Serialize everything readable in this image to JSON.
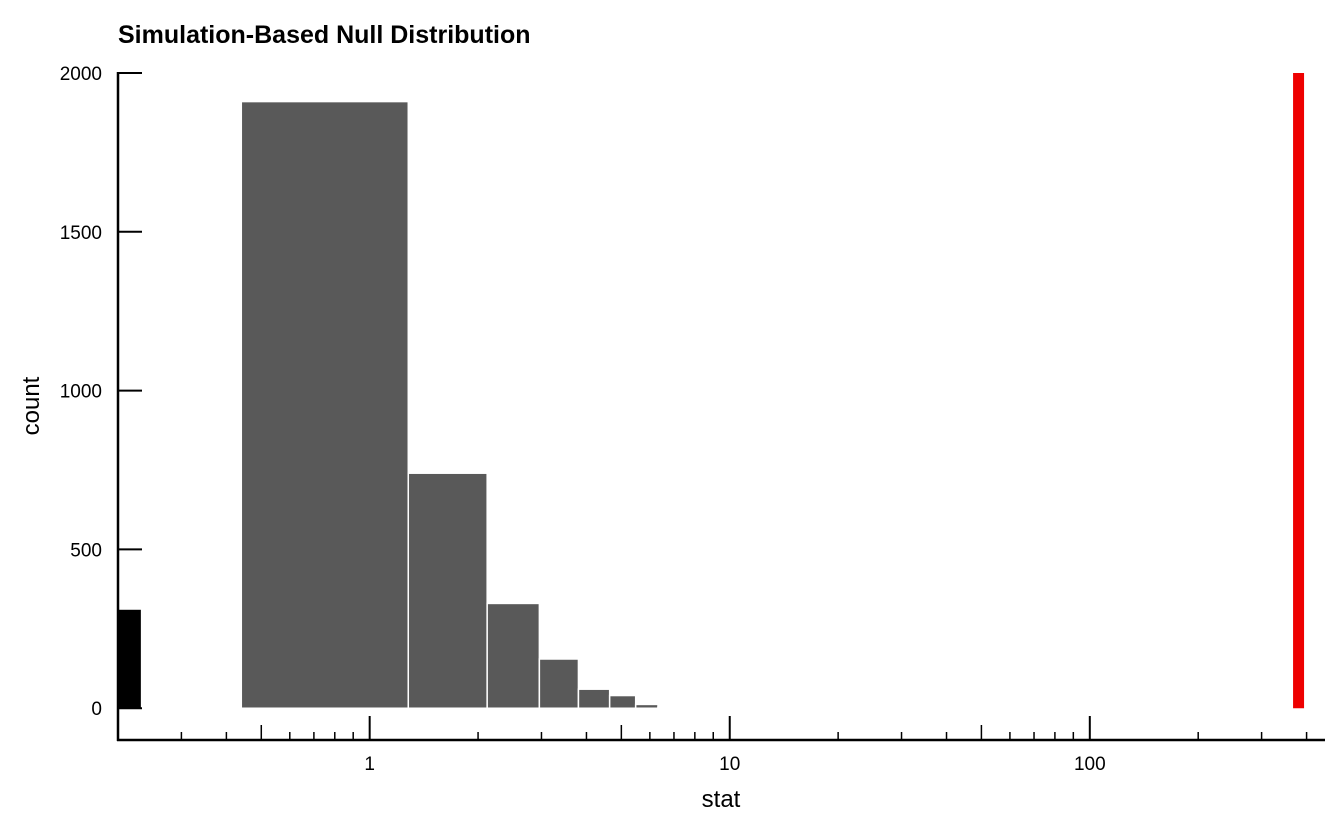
{
  "chart_data": {
    "type": "bar",
    "title": "Simulation-Based Null Distribution",
    "xlabel": "stat",
    "ylabel": "count",
    "x_scale": "log10",
    "xlim": [
      0.2,
      450
    ],
    "ylim": [
      -100,
      2000
    ],
    "grid": false,
    "legend": "none",
    "x_ticks": [
      1,
      10,
      100
    ],
    "y_ticks": [
      0,
      500,
      1000,
      1500,
      2000
    ],
    "bins": [
      {
        "x0": 0.44,
        "x1": 1.28,
        "count": 1910
      },
      {
        "x0": 1.28,
        "x1": 2.12,
        "count": 740
      },
      {
        "x0": 2.12,
        "x1": 2.96,
        "count": 330
      },
      {
        "x0": 2.96,
        "x1": 3.8,
        "count": 155
      },
      {
        "x0": 3.8,
        "x1": 4.64,
        "count": 60
      },
      {
        "x0": 4.64,
        "x1": 5.48,
        "count": 40
      },
      {
        "x0": 5.48,
        "x1": 6.32,
        "count": 12
      },
      {
        "x0": 6.32,
        "x1": 7.16,
        "count": 3
      }
    ],
    "boundary_bar": {
      "x0": 0.2,
      "x1": 0.23,
      "count": 310,
      "color": "#000000"
    },
    "observed_stat": {
      "x": 380,
      "color": "#ee0000"
    },
    "bar_color": "#595959",
    "bar_outline": "#ffffff"
  }
}
